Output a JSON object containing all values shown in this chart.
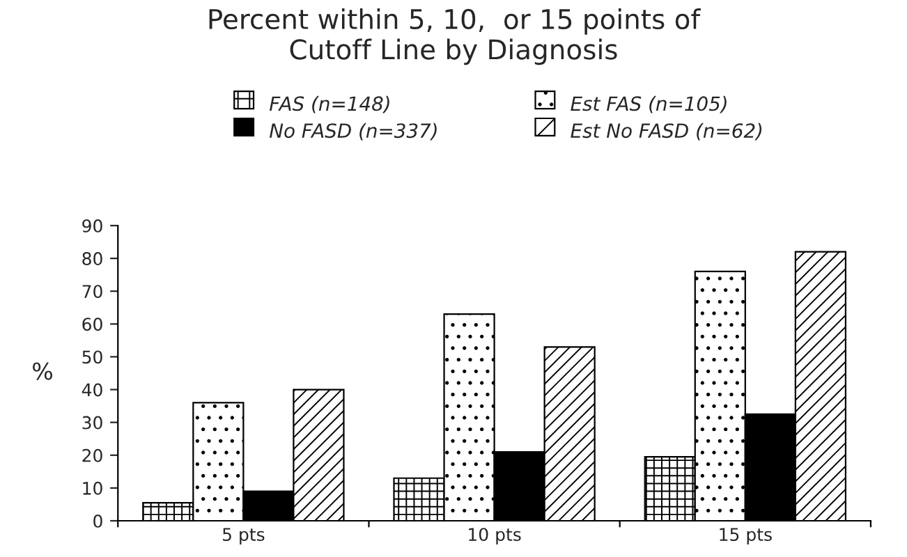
{
  "chart_data": {
    "type": "bar",
    "title": "Percent within 5, 10,  or 15 points of\nCutoff Line by Diagnosis",
    "ylabel": "%",
    "categories": [
      "5 pts",
      "10 pts",
      "15 pts"
    ],
    "series": [
      {
        "name": "FAS (n=148)",
        "color": "#ffffff",
        "values": [
          5.5,
          13,
          19.5
        ]
      },
      {
        "name": "Est FAS (n=105)",
        "color": "#ffffff",
        "values": [
          36,
          63,
          76
        ]
      },
      {
        "name": "No FASD (n=337)",
        "color": "#000000",
        "values": [
          9,
          21,
          32.5
        ]
      },
      {
        "name": "Est No FASD (n=62)",
        "color": "#ffffff",
        "values": [
          40,
          53,
          82
        ]
      }
    ],
    "ylim": [
      0,
      90
    ],
    "yticks": [
      0,
      10,
      20,
      30,
      40,
      50,
      60,
      70,
      80,
      90
    ],
    "grid": false,
    "legend": "top"
  }
}
